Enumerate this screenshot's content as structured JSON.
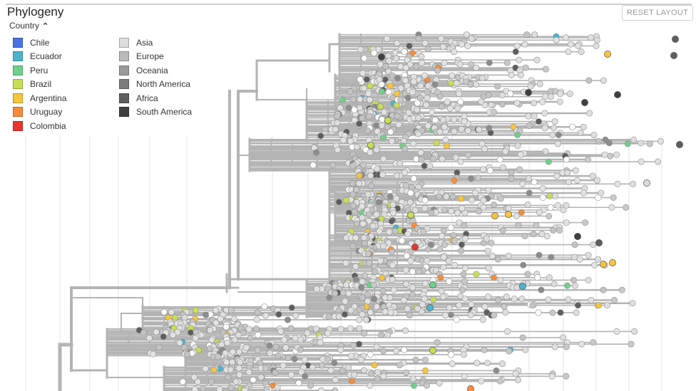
{
  "panel": {
    "title": "Phylogeny",
    "reset_label": "RESET LAYOUT"
  },
  "legend": {
    "toggle_label": "Country",
    "countries": [
      {
        "label": "Chile",
        "color": "#4a72e0"
      },
      {
        "label": "Ecuador",
        "color": "#4cb3cc"
      },
      {
        "label": "Peru",
        "color": "#6fcf8c"
      },
      {
        "label": "Brazil",
        "color": "#c6df55"
      },
      {
        "label": "Argentina",
        "color": "#f6c53e"
      },
      {
        "label": "Uruguay",
        "color": "#f58d3a"
      },
      {
        "label": "Colombia",
        "color": "#e83530"
      }
    ],
    "regions": [
      {
        "label": "Asia",
        "color": "#dcdcdc"
      },
      {
        "label": "Europe",
        "color": "#b9b9b9"
      },
      {
        "label": "Oceania",
        "color": "#9a9a9a"
      },
      {
        "label": "North America",
        "color": "#7c7c7c"
      },
      {
        "label": "Africa",
        "color": "#5e5e5e"
      },
      {
        "label": "South America",
        "color": "#404040"
      }
    ]
  }
}
